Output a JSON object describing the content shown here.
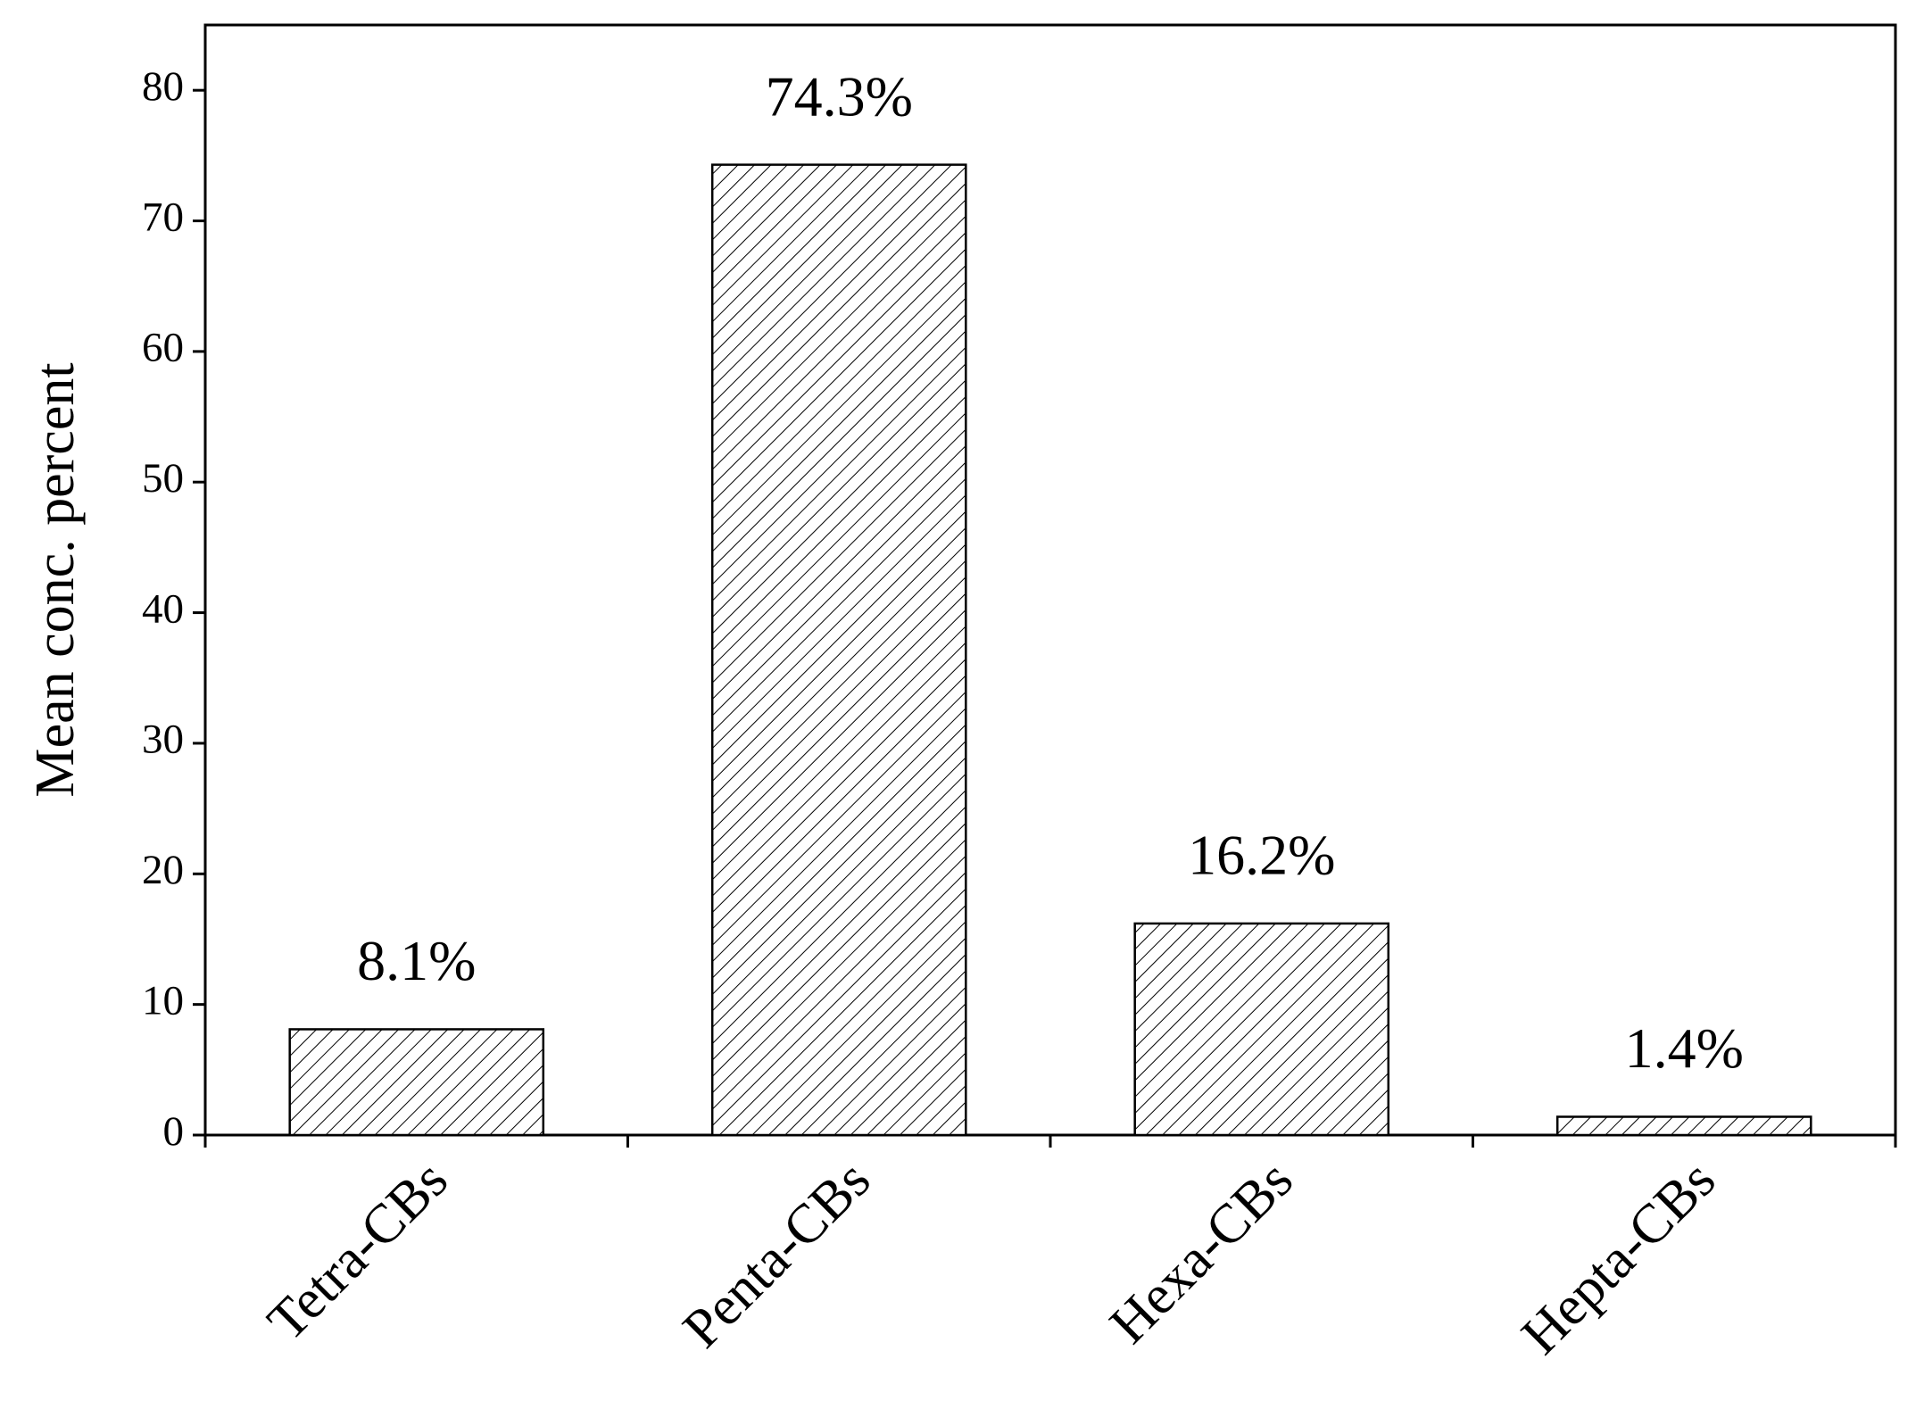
{
  "chart_data": {
    "type": "bar",
    "y_label": "Mean conc. percent",
    "categories": [
      "Tetra-CBs",
      "Penta-CBs",
      "Hexa-CBs",
      "Hepta-CBs"
    ],
    "values": [
      8.1,
      74.3,
      16.2,
      1.4
    ],
    "value_labels": [
      "8.1%",
      "74.3%",
      "16.2%",
      "1.4%"
    ],
    "color": "#ffffff",
    "hatch": "diagonal",
    "ylim": [
      0,
      85
    ],
    "yticks": [
      0,
      10,
      20,
      30,
      40,
      50,
      60,
      70,
      80
    ],
    "grid": false
  }
}
